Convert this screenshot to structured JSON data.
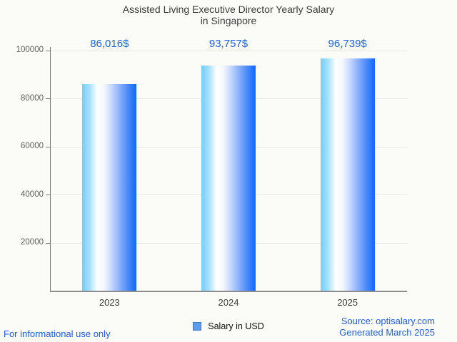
{
  "title": {
    "line1": "Assisted Living Executive Director Yearly Salary",
    "line2": "in Singapore"
  },
  "chart_data": {
    "type": "bar",
    "categories": [
      "2023",
      "2024",
      "2025"
    ],
    "values": [
      86016,
      93757,
      96739
    ],
    "value_labels": [
      "86,016$",
      "93,757$",
      "96,739$"
    ],
    "title": "Assisted Living Executive Director Yearly Salary in Singapore",
    "xlabel": "",
    "ylabel": "",
    "ylim": [
      0,
      100000
    ],
    "yticks": [
      20000,
      40000,
      60000,
      80000,
      100000
    ],
    "ytick_labels": [
      "20000",
      "40000",
      "60000",
      "80000",
      "100000"
    ],
    "grid": true,
    "legend_position": "bottom",
    "series_name": "Salary in USD",
    "bar_gradient": [
      "#72cef8",
      "#ffffff",
      "#0d6afc"
    ],
    "value_label_color": "#1b63ee",
    "legend_swatch_color": "#5d9ceb",
    "legend_swatch_border": "#3a78c8"
  },
  "legend": {
    "label": "Salary in USD"
  },
  "footer": {
    "disclaimer": "For informational use only",
    "source_line1": "Source: optisalary.com",
    "source_line2": "Generated March 2025"
  }
}
